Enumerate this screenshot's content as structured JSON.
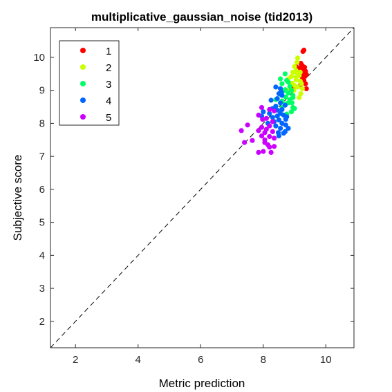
{
  "chart_data": {
    "type": "scatter",
    "title": "multiplicative_gaussian_noise (tid2013)",
    "xlabel": "Metric prediction",
    "ylabel": "Subjective score",
    "xlim": [
      1.2,
      10.9
    ],
    "ylim": [
      1.2,
      10.9
    ],
    "xticks": [
      2,
      4,
      6,
      8,
      10
    ],
    "yticks": [
      2,
      3,
      4,
      5,
      6,
      7,
      8,
      9,
      10
    ],
    "grid": false,
    "legend_position": "top-left",
    "reference_line": {
      "style": "dashed",
      "color": "#000000",
      "from": [
        1.2,
        1.2
      ],
      "to": [
        10.9,
        10.9
      ]
    },
    "series": [
      {
        "name": "1",
        "color": "#ff0000",
        "points": [
          [
            9.3,
            10.22
          ],
          [
            9.27,
            10.18
          ],
          [
            9.2,
            9.82
          ],
          [
            9.25,
            9.75
          ],
          [
            9.32,
            9.7
          ],
          [
            9.15,
            9.68
          ],
          [
            9.3,
            9.62
          ],
          [
            9.22,
            9.6
          ],
          [
            9.35,
            9.58
          ],
          [
            9.18,
            9.55
          ],
          [
            9.28,
            9.5
          ],
          [
            9.38,
            9.48
          ],
          [
            9.12,
            9.45
          ],
          [
            9.33,
            9.42
          ],
          [
            9.25,
            9.38
          ],
          [
            9.05,
            9.72
          ],
          [
            9.3,
            9.3
          ],
          [
            9.35,
            9.2
          ],
          [
            9.2,
            9.18
          ],
          [
            9.38,
            9.05
          ],
          [
            8.95,
            9.08
          ],
          [
            9.28,
            9.62
          ],
          [
            9.1,
            9.58
          ]
        ]
      },
      {
        "name": "2",
        "color": "#ccff00",
        "points": [
          [
            9.1,
            9.98
          ],
          [
            9.08,
            9.85
          ],
          [
            9.0,
            9.72
          ],
          [
            9.05,
            9.6
          ],
          [
            8.95,
            9.55
          ],
          [
            9.1,
            9.5
          ],
          [
            8.9,
            9.42
          ],
          [
            9.15,
            9.45
          ],
          [
            8.8,
            9.35
          ],
          [
            9.05,
            9.32
          ],
          [
            9.18,
            9.28
          ],
          [
            8.92,
            9.22
          ],
          [
            9.22,
            9.2
          ],
          [
            9.0,
            9.15
          ],
          [
            9.1,
            9.1
          ],
          [
            9.25,
            9.05
          ],
          [
            9.2,
            8.9
          ],
          [
            9.15,
            8.78
          ],
          [
            8.85,
            9.05
          ],
          [
            9.18,
            9.55
          ],
          [
            9.05,
            9.4
          ],
          [
            8.98,
            9.0
          ]
        ]
      },
      {
        "name": "3",
        "color": "#00ff66",
        "points": [
          [
            8.7,
            9.5
          ],
          [
            8.55,
            9.35
          ],
          [
            8.75,
            9.3
          ],
          [
            8.8,
            9.25
          ],
          [
            8.6,
            9.2
          ],
          [
            8.85,
            9.12
          ],
          [
            8.7,
            9.02
          ],
          [
            8.9,
            9.0
          ],
          [
            8.65,
            8.98
          ],
          [
            8.8,
            8.92
          ],
          [
            8.55,
            8.88
          ],
          [
            8.95,
            8.85
          ],
          [
            8.72,
            8.8
          ],
          [
            8.85,
            8.72
          ],
          [
            8.6,
            8.68
          ],
          [
            8.92,
            8.62
          ],
          [
            8.7,
            8.58
          ],
          [
            8.95,
            8.48
          ],
          [
            9.0,
            8.45
          ],
          [
            8.9,
            8.35
          ],
          [
            8.4,
            8.72
          ],
          [
            8.6,
            8.48
          ],
          [
            8.75,
            8.28
          ],
          [
            8.95,
            8.78
          ],
          [
            8.8,
            8.62
          ]
        ]
      },
      {
        "name": "4",
        "color": "#0066ff",
        "points": [
          [
            8.4,
            9.1
          ],
          [
            8.55,
            9.05
          ],
          [
            8.5,
            8.9
          ],
          [
            8.6,
            8.85
          ],
          [
            8.45,
            8.75
          ],
          [
            8.55,
            8.62
          ],
          [
            8.7,
            8.55
          ],
          [
            8.4,
            8.52
          ],
          [
            8.6,
            8.42
          ],
          [
            8.3,
            8.45
          ],
          [
            8.55,
            8.3
          ],
          [
            8.2,
            8.3
          ],
          [
            8.65,
            8.25
          ],
          [
            8.45,
            8.22
          ],
          [
            8.75,
            8.2
          ],
          [
            8.5,
            8.1
          ],
          [
            8.35,
            8.05
          ],
          [
            8.6,
            8.0
          ],
          [
            8.72,
            8.12
          ],
          [
            8.0,
            8.35
          ],
          [
            8.15,
            8.0
          ],
          [
            8.4,
            7.92
          ],
          [
            8.55,
            7.85
          ],
          [
            8.65,
            7.7
          ],
          [
            8.5,
            7.62
          ],
          [
            8.8,
            7.85
          ],
          [
            8.72,
            7.95
          ],
          [
            8.3,
            8.18
          ],
          [
            7.95,
            8.22
          ],
          [
            8.7,
            7.75
          ],
          [
            8.45,
            8.4
          ],
          [
            8.25,
            8.7
          ],
          [
            8.58,
            8.95
          ],
          [
            8.48,
            7.72
          ]
        ]
      },
      {
        "name": "5",
        "color": "#cc00ff",
        "points": [
          [
            7.95,
            8.48
          ],
          [
            8.2,
            8.42
          ],
          [
            8.35,
            8.38
          ],
          [
            7.85,
            8.25
          ],
          [
            8.1,
            8.15
          ],
          [
            7.98,
            8.12
          ],
          [
            8.3,
            8.05
          ],
          [
            8.2,
            7.92
          ],
          [
            7.95,
            7.88
          ],
          [
            8.1,
            7.82
          ],
          [
            7.85,
            7.78
          ],
          [
            8.05,
            7.72
          ],
          [
            7.3,
            7.78
          ],
          [
            7.5,
            7.95
          ],
          [
            7.95,
            7.62
          ],
          [
            8.2,
            7.6
          ],
          [
            8.35,
            7.55
          ],
          [
            7.65,
            7.48
          ],
          [
            8.05,
            7.42
          ],
          [
            7.4,
            7.42
          ],
          [
            8.15,
            7.35
          ],
          [
            8.35,
            7.3
          ],
          [
            8.2,
            7.28
          ],
          [
            8.0,
            7.15
          ],
          [
            7.85,
            7.12
          ],
          [
            8.25,
            7.12
          ],
          [
            8.05,
            7.5
          ],
          [
            8.3,
            7.75
          ]
        ]
      }
    ]
  }
}
